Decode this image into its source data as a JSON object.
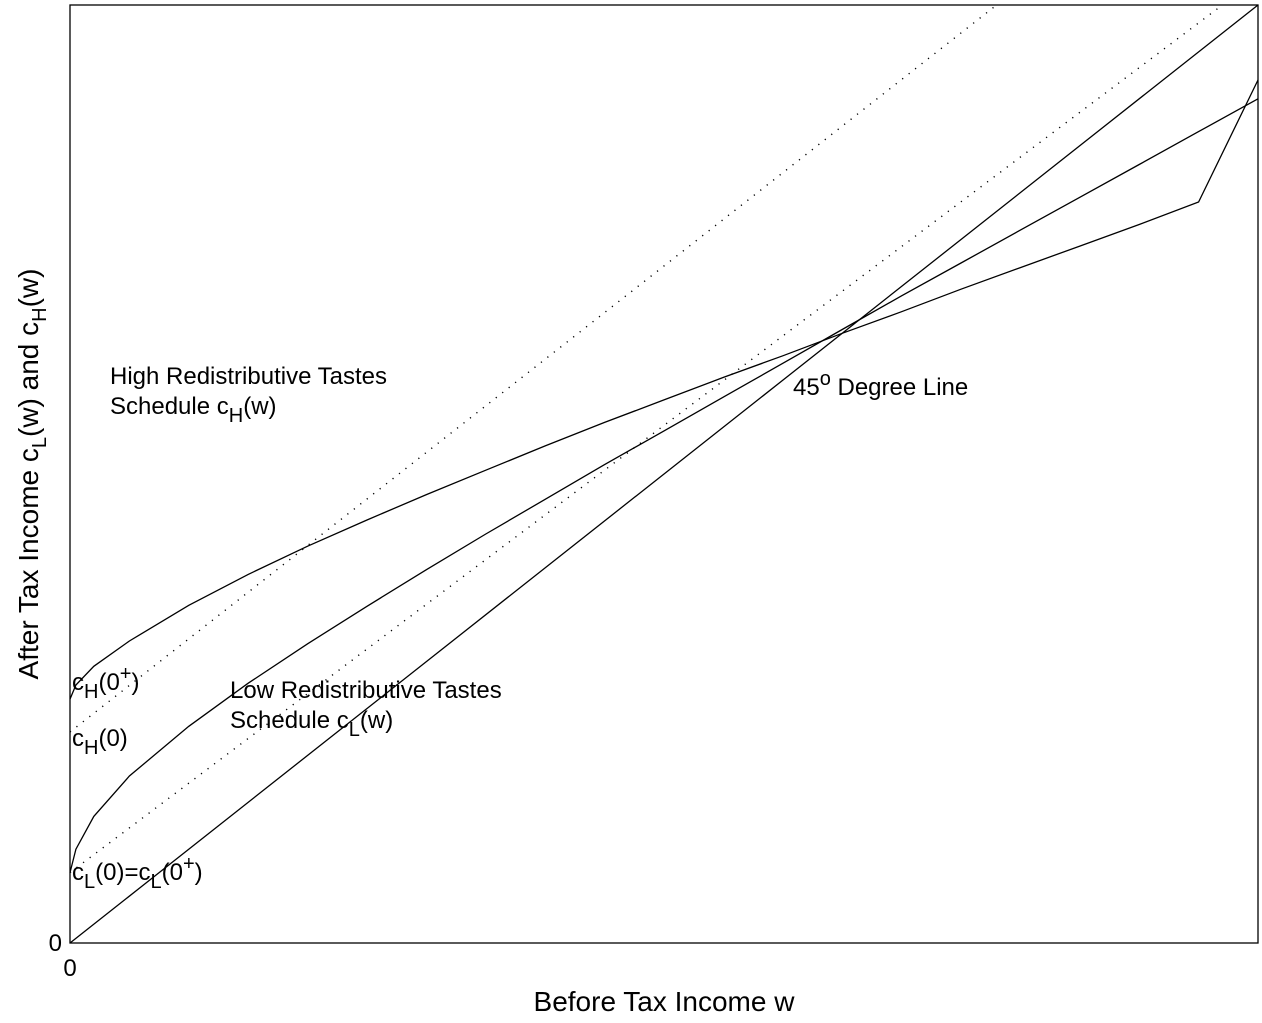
{
  "chart_data": {
    "type": "line",
    "title": "",
    "xlabel": "Before Tax Income w",
    "ylabel": {
      "pre": "After Tax Income c",
      "sub1": "L",
      "mid": "(w) and c",
      "sub2": "H",
      "post": "(w)"
    },
    "xlim": [
      0,
      1
    ],
    "ylim": [
      0,
      1
    ],
    "x_ticks": [
      "0"
    ],
    "y_ticks": [
      "0"
    ],
    "grid": false,
    "series": [
      {
        "name": "45 Degree Line",
        "style": "solid",
        "x": [
          0,
          1
        ],
        "y": [
          0,
          1
        ]
      },
      {
        "name": "High Redistributive Tastes Schedule c_H(w)",
        "style": "solid",
        "x": [
          0,
          0.005,
          0.02,
          0.05,
          0.1,
          0.15,
          0.2,
          0.25,
          0.3,
          0.35,
          0.4,
          0.45,
          0.5,
          0.55,
          0.6,
          0.65,
          0.7,
          0.75,
          0.8,
          0.85,
          0.9,
          0.95,
          1.0
        ],
        "y": [
          0.26,
          0.275,
          0.295,
          0.322,
          0.36,
          0.393,
          0.423,
          0.451,
          0.478,
          0.504,
          0.53,
          0.555,
          0.579,
          0.603,
          0.626,
          0.65,
          0.673,
          0.697,
          0.72,
          0.743,
          0.766,
          0.79,
          0.92
        ]
      },
      {
        "name": "Low Redistributive Tastes Schedule c_L(w)",
        "style": "solid",
        "x": [
          0,
          0.005,
          0.02,
          0.05,
          0.1,
          0.15,
          0.2,
          0.25,
          0.3,
          0.35,
          0.4,
          0.45,
          0.5,
          0.55,
          0.6,
          0.65,
          0.7,
          0.75,
          0.8,
          0.85,
          0.9,
          0.95,
          1.0
        ],
        "y": [
          0.075,
          0.1,
          0.135,
          0.178,
          0.231,
          0.277,
          0.319,
          0.359,
          0.398,
          0.436,
          0.473,
          0.51,
          0.546,
          0.582,
          0.618,
          0.654,
          0.69,
          0.725,
          0.76,
          0.795,
          0.83,
          0.865,
          0.9
        ]
      },
      {
        "name": "Dotted line from c_H(0)",
        "style": "dotted",
        "x": [
          0,
          0.78
        ],
        "y": [
          0.225,
          1.0
        ]
      },
      {
        "name": "Dotted line from c_L(0)",
        "style": "dotted",
        "x": [
          0,
          0.97
        ],
        "y": [
          0.075,
          1.0
        ]
      }
    ],
    "annotations": {
      "high_line1": "High Redistributive Tastes",
      "high_line2": {
        "pre": "Schedule c",
        "sub": "H",
        "post": "(w)"
      },
      "low_line1": "Low Redistributive Tastes",
      "low_line2": {
        "pre": "Schedule c",
        "sub": "L",
        "post": "(w)"
      },
      "degree": {
        "pre": "45",
        "sup": "o",
        "post": " Degree Line"
      },
      "cH0plus": {
        "pre": "c",
        "sub": "H",
        "mid": "(0",
        "sup": "+",
        "post": ")"
      },
      "cH0": {
        "pre": "c",
        "sub": "H",
        "post": "(0)"
      },
      "cL0": {
        "pre": "c",
        "sub1": "L",
        "mid": "(0)=c",
        "sub2": "L",
        "mid2": "(0",
        "sup": "+",
        "post": ")"
      }
    }
  }
}
